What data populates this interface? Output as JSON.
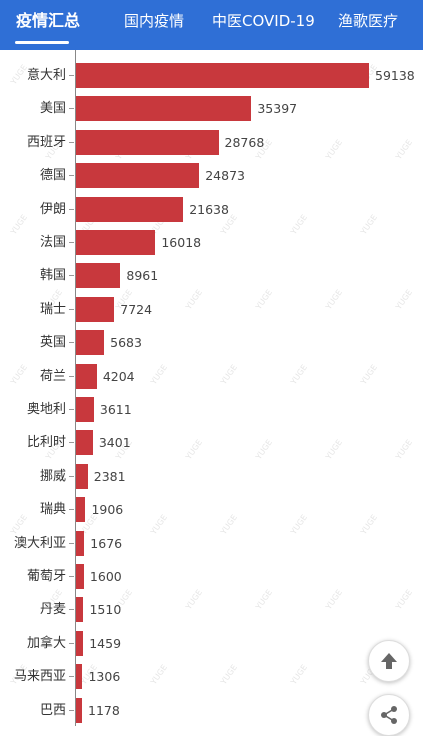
{
  "tabs": [
    {
      "label": "疫情汇总",
      "active": true
    },
    {
      "label": "国内疫情",
      "active": false
    },
    {
      "label": "中医COVID-19",
      "active": false
    },
    {
      "label": "渔歌医疗",
      "active": false
    }
  ],
  "watermark_text": "YUGE",
  "colors": {
    "header": "#2f6fd6",
    "bar": "#c8383d"
  },
  "icons": {
    "scroll_top": "arrow-up-icon",
    "share": "share-icon"
  },
  "chart_data": {
    "type": "bar",
    "orientation": "horizontal",
    "categories": [
      "意大利",
      "美国",
      "西班牙",
      "德国",
      "伊朗",
      "法国",
      "韩国",
      "瑞士",
      "英国",
      "荷兰",
      "奥地利",
      "比利时",
      "挪威",
      "瑞典",
      "澳大利亚",
      "葡萄牙",
      "丹麦",
      "加拿大",
      "马来西亚",
      "巴西"
    ],
    "values": [
      59138,
      35397,
      28768,
      24873,
      21638,
      16018,
      8961,
      7724,
      5683,
      4204,
      3611,
      3401,
      2381,
      1906,
      1676,
      1600,
      1510,
      1459,
      1306,
      1178
    ],
    "value_labels": [
      "59138",
      "35397",
      "28768",
      "24873",
      "21638",
      "16018",
      "8961",
      "7724",
      "5683",
      "4204",
      "3611",
      "3401",
      "2381",
      "1906",
      "1676",
      "1600",
      "1510",
      "1459",
      "1306",
      "1178"
    ],
    "title": "",
    "xlabel": "",
    "ylabel": "",
    "xlim": [
      0,
      59138
    ],
    "grid": false,
    "legend": "none"
  }
}
